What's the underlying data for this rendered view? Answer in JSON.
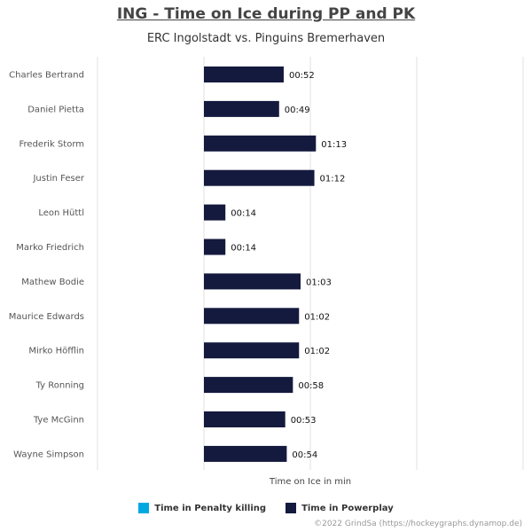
{
  "chart_data": {
    "type": "bar",
    "orientation": "horizontal",
    "title": "ING - Time on Ice during PP and PK",
    "subtitle": "ERC Ingolstadt vs. Pinguins Bremerhaven",
    "xlabel": "Time on Ice in min",
    "categories": [
      "Charles Bertrand",
      "Daniel Pietta",
      "Frederik Storm",
      "Justin Feser",
      "Leon Hüttl",
      "Marko Friedrich",
      "Mathew Bodie",
      "Maurice Edwards",
      "Mirko Höfflin",
      "Ty Ronning",
      "Tye McGinn",
      "Wayne Simpson"
    ],
    "series": [
      {
        "name": "Time in Penalty killing",
        "color": "#00a8e1",
        "values": [
          0,
          0,
          0,
          0,
          0,
          0,
          0,
          0,
          0,
          0,
          0,
          0
        ],
        "labels": []
      },
      {
        "name": "Time in Powerplay",
        "color": "#141a3e",
        "values_seconds": [
          52,
          49,
          73,
          72,
          14,
          14,
          63,
          62,
          62,
          58,
          53,
          54
        ],
        "labels": [
          "00:52",
          "00:49",
          "01:13",
          "01:12",
          "00:14",
          "00:14",
          "01:03",
          "01:02",
          "01:02",
          "00:58",
          "00:53",
          "00:54"
        ]
      }
    ],
    "grid": "vertical",
    "legend_position": "bottom"
  },
  "credit": "©2022 GrindSa (https://hockeygraphs.dynamop.de)"
}
